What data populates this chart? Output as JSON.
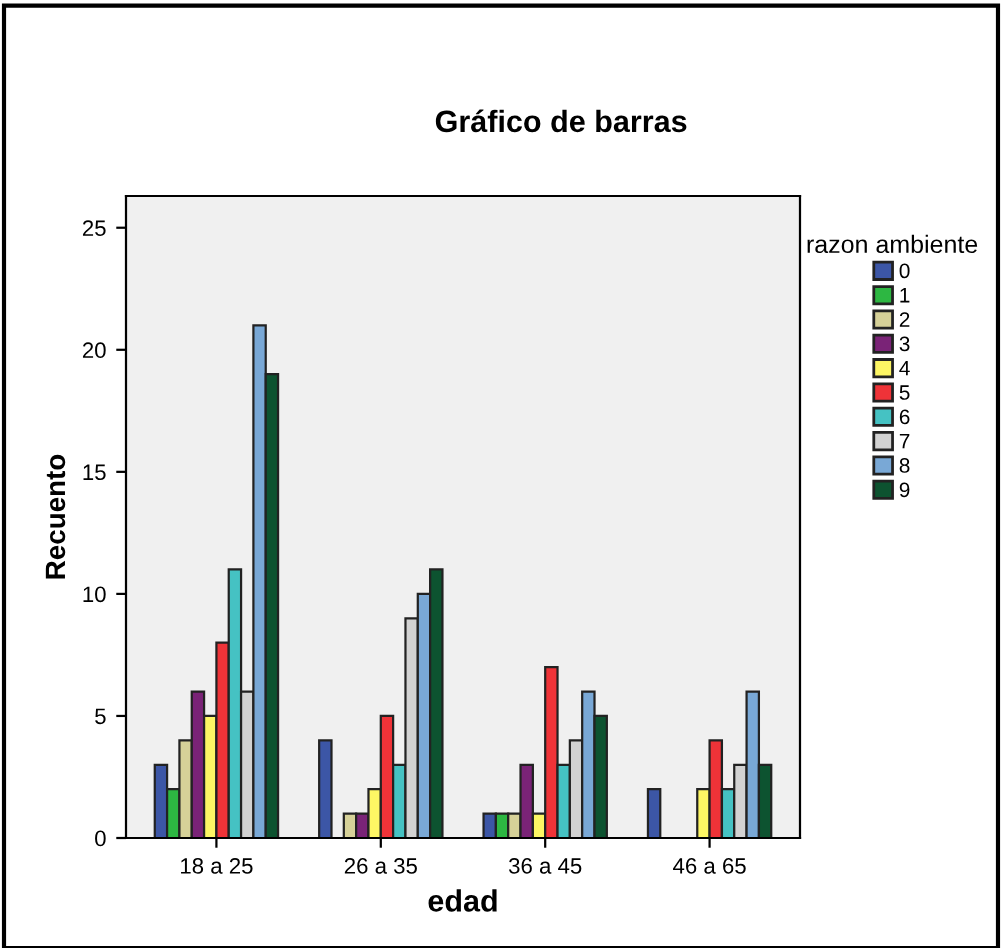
{
  "chart_data": {
    "type": "bar",
    "title": "Gráfico de barras",
    "xlabel": "edad",
    "ylabel": "Recuento",
    "legend_title": "razon ambiente",
    "categories": [
      "18 a 25",
      "26 a 35",
      "36 a 45",
      "46 a 65"
    ],
    "series": [
      {
        "name": "0",
        "color": "#3c56a6",
        "values": [
          3,
          4,
          1,
          2
        ]
      },
      {
        "name": "1",
        "color": "#2db742",
        "values": [
          2,
          null,
          1,
          null
        ]
      },
      {
        "name": "2",
        "color": "#d6d198",
        "values": [
          4,
          1,
          1,
          null
        ]
      },
      {
        "name": "3",
        "color": "#7a2377",
        "values": [
          6,
          1,
          3,
          null
        ]
      },
      {
        "name": "4",
        "color": "#fdf664",
        "values": [
          5,
          2,
          1,
          2
        ]
      },
      {
        "name": "5",
        "color": "#ef3338",
        "values": [
          8,
          5,
          7,
          4
        ]
      },
      {
        "name": "6",
        "color": "#45c2c3",
        "values": [
          11,
          3,
          3,
          2
        ]
      },
      {
        "name": "7",
        "color": "#d2d2d2",
        "values": [
          6,
          9,
          4,
          3
        ]
      },
      {
        "name": "8",
        "color": "#79a8d6",
        "values": [
          21,
          10,
          6,
          6
        ]
      },
      {
        "name": "9",
        "color": "#0d5330",
        "values": [
          19,
          11,
          5,
          3
        ]
      }
    ],
    "ylim": [
      0,
      26.3
    ],
    "yticks": [
      0,
      5,
      10,
      15,
      20,
      25
    ],
    "grid": false,
    "legend": "top right"
  }
}
